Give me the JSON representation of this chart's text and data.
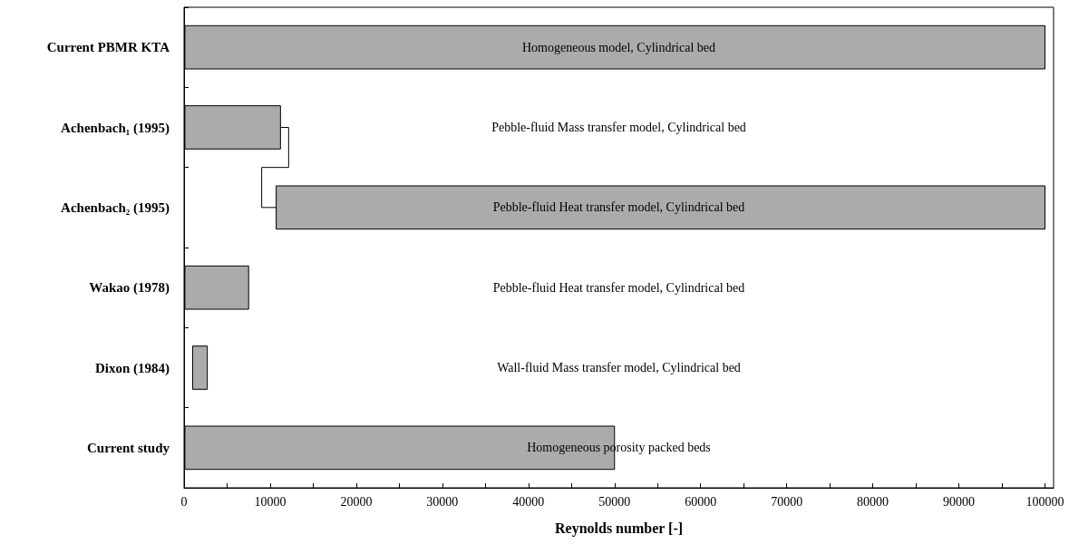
{
  "chart_data": {
    "type": "bar",
    "orientation": "horizontal",
    "xlabel": "Reynolds number [-]",
    "categories": [
      "Current PBMR KTA",
      "Achenbach₁ (1995)",
      "Achenbach₂ (1995)",
      "Wakao (1978)",
      "Dixon (1984)",
      "Current study"
    ],
    "base": [
      100,
      100,
      10700,
      100,
      1000,
      100
    ],
    "values": [
      99900,
      11100,
      89300,
      7400,
      1700,
      49900
    ],
    "color": "#ababab",
    "xlim": [
      0,
      101000
    ],
    "xticks": [
      0,
      {
        "value": 5000,
        "label": null
      },
      10000,
      {
        "value": 15000,
        "label": null
      },
      20000,
      {
        "value": 25000,
        "label": null
      },
      30000,
      {
        "value": 35000,
        "label": null
      },
      40000,
      {
        "value": 45000,
        "label": null
      },
      50000,
      {
        "value": 55000,
        "label": null
      },
      60000,
      {
        "value": 65000,
        "label": null
      },
      70000,
      {
        "value": 75000,
        "label": null
      },
      80000,
      {
        "value": 85000,
        "label": null
      },
      90000,
      {
        "value": 95000,
        "label": null
      },
      100000
    ],
    "annotations": [
      "Homogeneous model, Cylindrical bed",
      "Pebble-fluid Mass transfer model, Cylindrical bed",
      "Pebble-fluid Heat transfer model, Cylindrical bed",
      "Pebble-fluid Heat transfer model, Cylindrical bed",
      "Wall-fluid Mass transfer model, Cylindrical bed",
      "Homogeneous porosity packed beds"
    ],
    "grid": false
  }
}
